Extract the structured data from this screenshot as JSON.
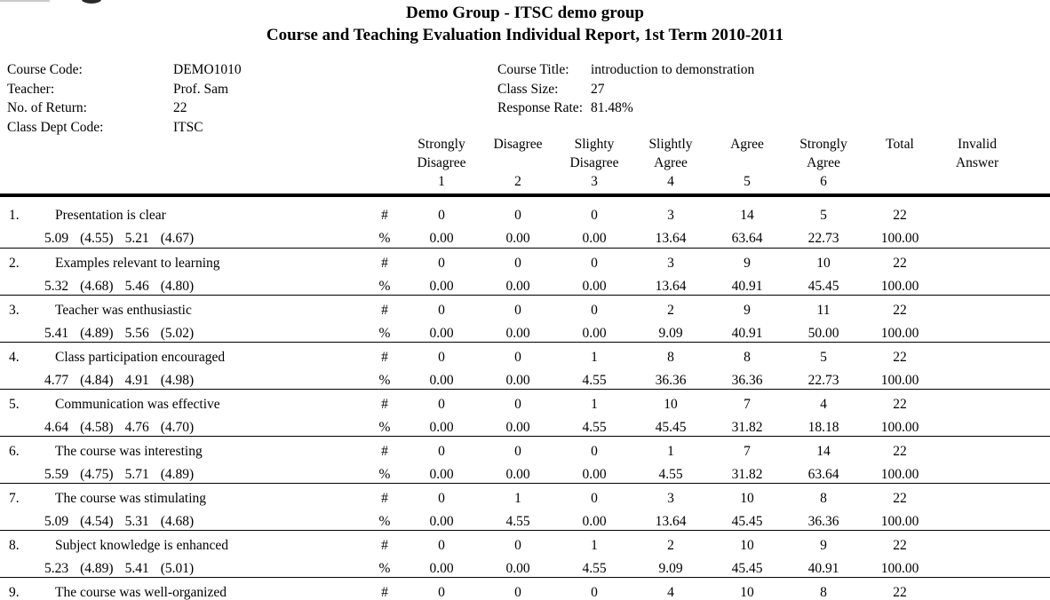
{
  "colors": {
    "text": "#000000",
    "background": "#ffffff",
    "rule": "#000000"
  },
  "header": {
    "title_line1": "Demo Group - ITSC demo group",
    "title_line2": "Course and Teaching Evaluation Individual Report, 1st Term 2010-2011"
  },
  "course_info": {
    "left": [
      {
        "label": "Course Code:",
        "value": "DEMO1010"
      },
      {
        "label": "Teacher:",
        "value": "Prof. Sam"
      },
      {
        "label": "No. of Return:",
        "value": "22"
      },
      {
        "label": "Class Dept Code:",
        "value": "ITSC"
      }
    ],
    "right": [
      {
        "label": "Course Title:",
        "value": "introduction to demonstration"
      },
      {
        "label": "Class Size:",
        "value": "27"
      },
      {
        "label": "Response Rate:",
        "value": "81.48%"
      }
    ]
  },
  "table": {
    "count_row_symbol": "#",
    "percent_row_symbol": "%",
    "column_headers": [
      [
        "Strongly",
        "Disagree",
        "1"
      ],
      [
        "Disagree",
        "",
        "2"
      ],
      [
        "Slighty",
        "Disagree",
        "3"
      ],
      [
        "Slightly",
        "Agree",
        "4"
      ],
      [
        "Agree",
        "",
        "5"
      ],
      [
        "Strongly",
        "Agree",
        "6"
      ],
      [
        "Total",
        "",
        ""
      ],
      [
        "Invalid",
        "Answer",
        ""
      ]
    ],
    "rows": [
      {
        "number": "1.",
        "question": "Presentation is clear",
        "stats": [
          "5.09",
          "(4.55)",
          "5.21",
          "(4.67)"
        ],
        "counts": [
          "0",
          "0",
          "0",
          "3",
          "14",
          "5",
          "22",
          ""
        ],
        "percents": [
          "0.00",
          "0.00",
          "0.00",
          "13.64",
          "63.64",
          "22.73",
          "100.00",
          ""
        ]
      },
      {
        "number": "2.",
        "question": "Examples relevant to learning",
        "stats": [
          "5.32",
          "(4.68)",
          "5.46",
          "(4.80)"
        ],
        "counts": [
          "0",
          "0",
          "0",
          "3",
          "9",
          "10",
          "22",
          ""
        ],
        "percents": [
          "0.00",
          "0.00",
          "0.00",
          "13.64",
          "40.91",
          "45.45",
          "100.00",
          ""
        ]
      },
      {
        "number": "3.",
        "question": "Teacher was enthusiastic",
        "stats": [
          "5.41",
          "(4.89)",
          "5.56",
          "(5.02)"
        ],
        "counts": [
          "0",
          "0",
          "0",
          "2",
          "9",
          "11",
          "22",
          ""
        ],
        "percents": [
          "0.00",
          "0.00",
          "0.00",
          "9.09",
          "40.91",
          "50.00",
          "100.00",
          ""
        ]
      },
      {
        "number": "4.",
        "question": "Class participation encouraged",
        "stats": [
          "4.77",
          "(4.84)",
          "4.91",
          "(4.98)"
        ],
        "counts": [
          "0",
          "0",
          "1",
          "8",
          "8",
          "5",
          "22",
          ""
        ],
        "percents": [
          "0.00",
          "0.00",
          "4.55",
          "36.36",
          "36.36",
          "22.73",
          "100.00",
          ""
        ]
      },
      {
        "number": "5.",
        "question": "Communication was effective",
        "stats": [
          "4.64",
          "(4.58)",
          "4.76",
          "(4.70)"
        ],
        "counts": [
          "0",
          "0",
          "1",
          "10",
          "7",
          "4",
          "22",
          ""
        ],
        "percents": [
          "0.00",
          "0.00",
          "4.55",
          "45.45",
          "31.82",
          "18.18",
          "100.00",
          ""
        ]
      },
      {
        "number": "6.",
        "question": "The course was interesting",
        "stats": [
          "5.59",
          "(4.75)",
          "5.71",
          "(4.89)"
        ],
        "counts": [
          "0",
          "0",
          "0",
          "1",
          "7",
          "14",
          "22",
          ""
        ],
        "percents": [
          "0.00",
          "0.00",
          "0.00",
          "4.55",
          "31.82",
          "63.64",
          "100.00",
          ""
        ]
      },
      {
        "number": "7.",
        "question": "The course was stimulating",
        "stats": [
          "5.09",
          "(4.54)",
          "5.31",
          "(4.68)"
        ],
        "counts": [
          "0",
          "1",
          "0",
          "3",
          "10",
          "8",
          "22",
          ""
        ],
        "percents": [
          "0.00",
          "4.55",
          "0.00",
          "13.64",
          "45.45",
          "36.36",
          "100.00",
          ""
        ]
      },
      {
        "number": "8.",
        "question": "Subject knowledge is enhanced",
        "stats": [
          "5.23",
          "(4.89)",
          "5.41",
          "(5.01)"
        ],
        "counts": [
          "0",
          "0",
          "1",
          "2",
          "10",
          "9",
          "22",
          ""
        ],
        "percents": [
          "0.00",
          "0.00",
          "4.55",
          "9.09",
          "45.45",
          "40.91",
          "100.00",
          ""
        ]
      },
      {
        "number": "9.",
        "question": "The course was well-organized",
        "stats": [],
        "counts": [
          "0",
          "0",
          "0",
          "4",
          "10",
          "8",
          "22",
          ""
        ],
        "percents": []
      }
    ]
  }
}
